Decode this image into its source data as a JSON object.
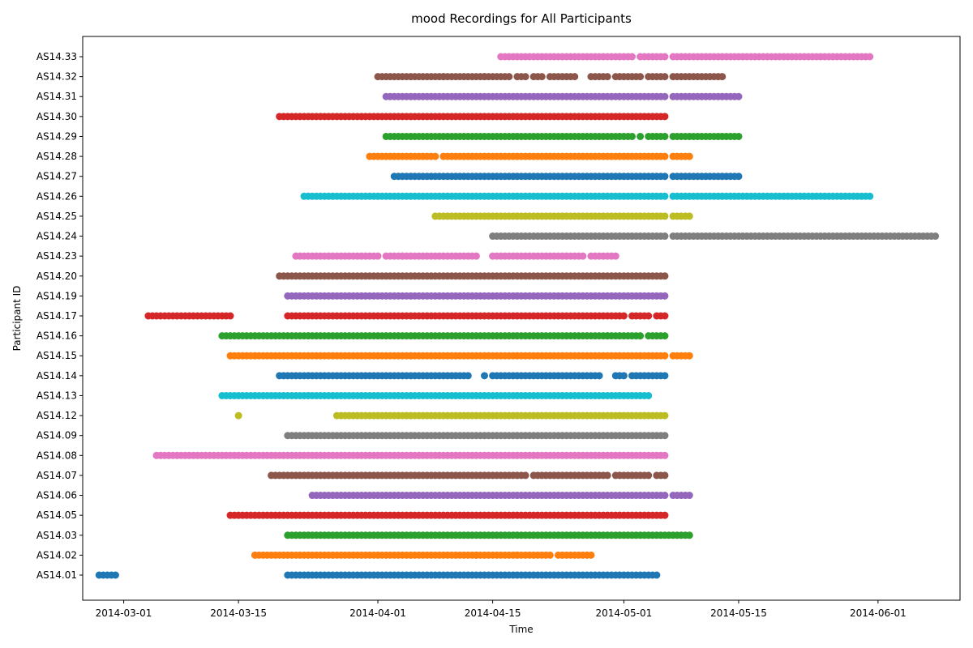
{
  "chart_data": {
    "type": "scatter",
    "title": "mood Recordings for All Participants",
    "xlabel": "Time",
    "ylabel": "Participant ID",
    "x_ticks": [
      "2014-03-01",
      "2014-03-15",
      "2014-04-01",
      "2014-04-15",
      "2014-05-01",
      "2014-05-15",
      "2014-06-01"
    ],
    "xlim": [
      "2014-02-24",
      "2014-06-11"
    ],
    "grid": false,
    "legend": "none",
    "series": [
      {
        "id": "AS14.01",
        "color": "#1f77b4",
        "segments": [
          [
            "2014-02-26",
            "2014-02-28"
          ],
          [
            "2014-03-21",
            "2014-05-05"
          ]
        ]
      },
      {
        "id": "AS14.02",
        "color": "#ff7f0e",
        "segments": [
          [
            "2014-03-17",
            "2014-04-13"
          ],
          [
            "2014-04-13",
            "2014-04-22"
          ],
          [
            "2014-04-23",
            "2014-04-27"
          ]
        ]
      },
      {
        "id": "AS14.03",
        "color": "#2ca02c",
        "segments": [
          [
            "2014-03-21",
            "2014-05-09"
          ]
        ]
      },
      {
        "id": "AS14.05",
        "color": "#d62728",
        "segments": [
          [
            "2014-03-14",
            "2014-05-06"
          ]
        ]
      },
      {
        "id": "AS14.06",
        "color": "#9467bd",
        "segments": [
          [
            "2014-03-24",
            "2014-05-06"
          ],
          [
            "2014-05-07",
            "2014-05-09"
          ]
        ]
      },
      {
        "id": "AS14.07",
        "color": "#8c564b",
        "segments": [
          [
            "2014-03-19",
            "2014-04-19"
          ],
          [
            "2014-04-20",
            "2014-04-29"
          ],
          [
            "2014-04-30",
            "2014-05-04"
          ],
          [
            "2014-05-05",
            "2014-05-06"
          ]
        ]
      },
      {
        "id": "AS14.08",
        "color": "#e377c2",
        "segments": [
          [
            "2014-03-05",
            "2014-05-06"
          ]
        ]
      },
      {
        "id": "AS14.09",
        "color": "#7f7f7f",
        "segments": [
          [
            "2014-03-21",
            "2014-05-06"
          ]
        ]
      },
      {
        "id": "AS14.12",
        "color": "#bcbd22",
        "segments": [
          [
            "2014-03-15",
            "2014-03-15"
          ],
          [
            "2014-03-27",
            "2014-05-06"
          ]
        ]
      },
      {
        "id": "AS14.13",
        "color": "#17becf",
        "segments": [
          [
            "2014-03-13",
            "2014-05-04"
          ]
        ]
      },
      {
        "id": "AS14.14",
        "color": "#1f77b4",
        "segments": [
          [
            "2014-03-20",
            "2014-04-12"
          ],
          [
            "2014-04-14",
            "2014-04-14"
          ],
          [
            "2014-04-15",
            "2014-04-28"
          ],
          [
            "2014-04-30",
            "2014-05-01"
          ],
          [
            "2014-05-02",
            "2014-05-06"
          ]
        ]
      },
      {
        "id": "AS14.15",
        "color": "#ff7f0e",
        "segments": [
          [
            "2014-03-14",
            "2014-05-06"
          ],
          [
            "2014-05-07",
            "2014-05-09"
          ]
        ]
      },
      {
        "id": "AS14.16",
        "color": "#2ca02c",
        "segments": [
          [
            "2014-03-13",
            "2014-04-29"
          ],
          [
            "2014-04-29",
            "2014-05-03"
          ],
          [
            "2014-05-04",
            "2014-05-06"
          ]
        ]
      },
      {
        "id": "AS14.17",
        "color": "#d62728",
        "segments": [
          [
            "2014-03-04",
            "2014-03-14"
          ],
          [
            "2014-03-21",
            "2014-05-01"
          ],
          [
            "2014-05-02",
            "2014-05-04"
          ],
          [
            "2014-05-05",
            "2014-05-06"
          ]
        ]
      },
      {
        "id": "AS14.19",
        "color": "#9467bd",
        "segments": [
          [
            "2014-03-21",
            "2014-05-06"
          ]
        ]
      },
      {
        "id": "AS14.20",
        "color": "#8c564b",
        "segments": [
          [
            "2014-03-20",
            "2014-05-06"
          ]
        ]
      },
      {
        "id": "AS14.23",
        "color": "#e377c2",
        "segments": [
          [
            "2014-03-22",
            "2014-04-01"
          ],
          [
            "2014-04-02",
            "2014-04-04"
          ],
          [
            "2014-04-04",
            "2014-04-13"
          ],
          [
            "2014-04-15",
            "2014-04-26"
          ],
          [
            "2014-04-27",
            "2014-04-30"
          ]
        ]
      },
      {
        "id": "AS14.24",
        "color": "#7f7f7f",
        "segments": [
          [
            "2014-04-15",
            "2014-05-06"
          ],
          [
            "2014-05-07",
            "2014-06-08"
          ]
        ]
      },
      {
        "id": "AS14.25",
        "color": "#bcbd22",
        "segments": [
          [
            "2014-04-08",
            "2014-05-06"
          ],
          [
            "2014-05-07",
            "2014-05-09"
          ]
        ]
      },
      {
        "id": "AS14.26",
        "color": "#17becf",
        "segments": [
          [
            "2014-03-23",
            "2014-05-06"
          ],
          [
            "2014-05-07",
            "2014-05-31"
          ]
        ]
      },
      {
        "id": "AS14.27",
        "color": "#1f77b4",
        "segments": [
          [
            "2014-04-03",
            "2014-05-06"
          ],
          [
            "2014-05-07",
            "2014-05-15"
          ]
        ]
      },
      {
        "id": "AS14.28",
        "color": "#ff7f0e",
        "segments": [
          [
            "2014-03-31",
            "2014-04-08"
          ],
          [
            "2014-04-09",
            "2014-05-06"
          ],
          [
            "2014-05-07",
            "2014-05-09"
          ]
        ]
      },
      {
        "id": "AS14.29",
        "color": "#2ca02c",
        "segments": [
          [
            "2014-04-02",
            "2014-05-02"
          ],
          [
            "2014-05-03",
            "2014-05-03"
          ],
          [
            "2014-05-04",
            "2014-05-06"
          ],
          [
            "2014-05-07",
            "2014-05-15"
          ]
        ]
      },
      {
        "id": "AS14.30",
        "color": "#d62728",
        "segments": [
          [
            "2014-03-20",
            "2014-05-06"
          ]
        ]
      },
      {
        "id": "AS14.31",
        "color": "#9467bd",
        "segments": [
          [
            "2014-04-02",
            "2014-05-06"
          ],
          [
            "2014-05-07",
            "2014-05-15"
          ]
        ]
      },
      {
        "id": "AS14.32",
        "color": "#8c564b",
        "segments": [
          [
            "2014-04-01",
            "2014-04-09"
          ],
          [
            "2014-04-09",
            "2014-04-14"
          ],
          [
            "2014-04-14",
            "2014-04-17"
          ],
          [
            "2014-04-18",
            "2014-04-19"
          ],
          [
            "2014-04-20",
            "2014-04-21"
          ],
          [
            "2014-04-22",
            "2014-04-25"
          ],
          [
            "2014-04-27",
            "2014-04-29"
          ],
          [
            "2014-04-30",
            "2014-05-03"
          ],
          [
            "2014-05-04",
            "2014-05-06"
          ],
          [
            "2014-05-07",
            "2014-05-13"
          ]
        ]
      },
      {
        "id": "AS14.33",
        "color": "#e377c2",
        "segments": [
          [
            "2014-04-16",
            "2014-05-02"
          ],
          [
            "2014-05-03",
            "2014-05-06"
          ],
          [
            "2014-05-07",
            "2014-05-31"
          ]
        ]
      }
    ]
  }
}
